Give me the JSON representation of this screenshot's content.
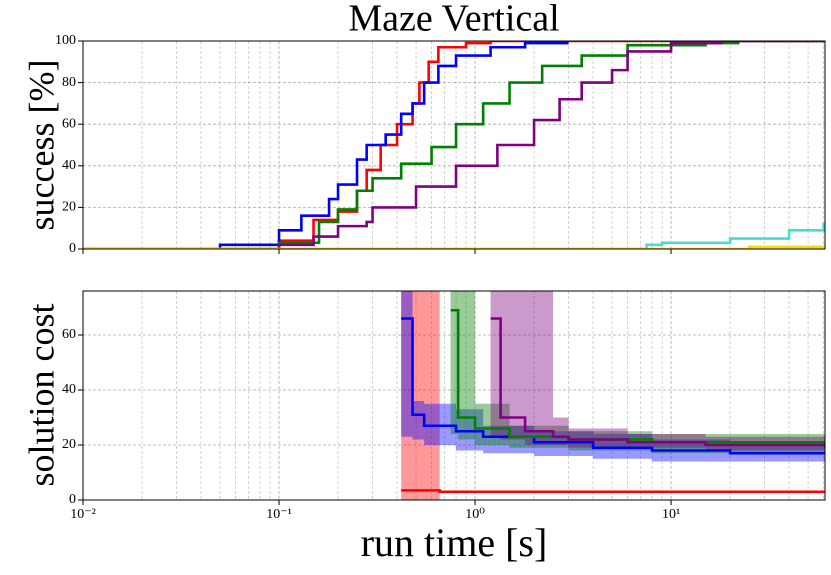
{
  "chart_data": [
    {
      "type": "step",
      "title": "Maze Vertical",
      "ylabel": "success [%]",
      "xscale": "log",
      "grid": true,
      "xlim": [
        0.01,
        61
      ],
      "xticks": [
        0.01,
        0.1,
        1,
        10
      ],
      "ylim": [
        0,
        100
      ],
      "yticks": [
        0,
        20,
        40,
        60,
        80,
        100
      ],
      "series": [
        {
          "color": "#ff0000",
          "x": [
            0.01,
            0.1,
            0.15,
            0.2,
            0.25,
            0.28,
            0.33,
            0.4,
            0.48,
            0.52,
            0.58,
            0.65,
            0.9,
            1.2,
            61
          ],
          "values": [
            0,
            4,
            14,
            18,
            28,
            38,
            50,
            60,
            70,
            80,
            90,
            97,
            99,
            100,
            100
          ]
        },
        {
          "color": "#0000ff",
          "x": [
            0.01,
            0.05,
            0.1,
            0.13,
            0.18,
            0.2,
            0.25,
            0.28,
            0.35,
            0.42,
            0.48,
            0.55,
            0.65,
            0.8,
            1.2,
            1.8,
            3
          ],
          "values": [
            0,
            2,
            9,
            16,
            24,
            31,
            43,
            50,
            55,
            65,
            70,
            80,
            88,
            93,
            97,
            99,
            99
          ]
        },
        {
          "color": "#008000",
          "x": [
            0.01,
            0.1,
            0.16,
            0.2,
            0.25,
            0.3,
            0.42,
            0.6,
            0.8,
            1.1,
            1.5,
            2.2,
            3.5,
            6,
            15,
            22,
            61
          ],
          "values": [
            0,
            3,
            13,
            19,
            28,
            34,
            41,
            49,
            60,
            70,
            80,
            88,
            93,
            98,
            99,
            100,
            100
          ]
        },
        {
          "color": "#800080",
          "x": [
            0.01,
            0.1,
            0.15,
            0.2,
            0.28,
            0.3,
            0.5,
            0.8,
            1.3,
            2,
            2.7,
            3.5,
            5,
            6,
            10,
            18,
            61
          ],
          "values": [
            0,
            2,
            6,
            11,
            13,
            20,
            30,
            40,
            50,
            62,
            72,
            80,
            86,
            95,
            99,
            100,
            100
          ]
        },
        {
          "color": "#40e0d0",
          "x": [
            0.01,
            7.5,
            9,
            20,
            40,
            60,
            61
          ],
          "values": [
            0,
            2,
            3,
            5,
            9,
            12,
            12
          ]
        },
        {
          "color": "#ffd700",
          "x": [
            0.01,
            25,
            61
          ],
          "values": [
            0,
            1,
            1
          ]
        }
      ]
    },
    {
      "type": "step-band",
      "xlabel": "run time [s]",
      "ylabel": "solution cost",
      "xscale": "log",
      "grid": true,
      "xlim": [
        0.01,
        61
      ],
      "xticks": [
        {
          "value": 0.01,
          "label": "10⁻²"
        },
        {
          "value": 0.1,
          "label": "10⁻¹"
        },
        {
          "value": 1,
          "label": "10⁰"
        },
        {
          "value": 10,
          "label": "10¹"
        }
      ],
      "ylim": [
        0,
        76
      ],
      "yticks": [
        0,
        20,
        40,
        60
      ],
      "series": [
        {
          "color": "#ff0000",
          "x": [
            0.42,
            0.66,
            61
          ],
          "values": [
            3.5,
            3,
            3
          ],
          "lower": [
            0,
            3,
            3
          ],
          "upper": [
            100,
            3,
            3
          ]
        },
        {
          "color": "#0000ff",
          "x": [
            0.42,
            0.48,
            0.55,
            0.8,
            1.1,
            2,
            4,
            8,
            20,
            61
          ],
          "values": [
            66,
            31,
            27,
            25,
            23,
            21,
            19,
            18,
            17,
            17
          ],
          "lower": [
            23,
            22,
            20,
            18,
            17,
            16,
            15,
            14,
            14,
            14
          ],
          "upper": [
            100,
            36,
            35,
            33,
            27,
            25,
            24,
            22,
            21,
            21
          ]
        },
        {
          "color": "#008000",
          "x": [
            0.75,
            0.82,
            1,
            1.5,
            3,
            8,
            61
          ],
          "values": [
            69,
            30,
            26,
            23,
            22,
            21,
            20
          ],
          "lower": [
            24,
            22,
            20,
            19,
            18,
            17,
            17
          ],
          "upper": [
            100,
            100,
            35,
            27,
            25,
            24,
            23
          ]
        },
        {
          "color": "#800080",
          "x": [
            1.2,
            1.35,
            1.8,
            2.5,
            3,
            6,
            15,
            61
          ],
          "values": [
            66,
            30,
            25,
            23,
            22,
            21,
            20,
            19
          ],
          "lower": [
            23,
            22,
            20,
            20,
            19,
            19,
            18,
            18
          ],
          "upper": [
            100,
            100,
            100,
            30,
            26,
            24,
            23,
            23
          ]
        }
      ]
    }
  ]
}
